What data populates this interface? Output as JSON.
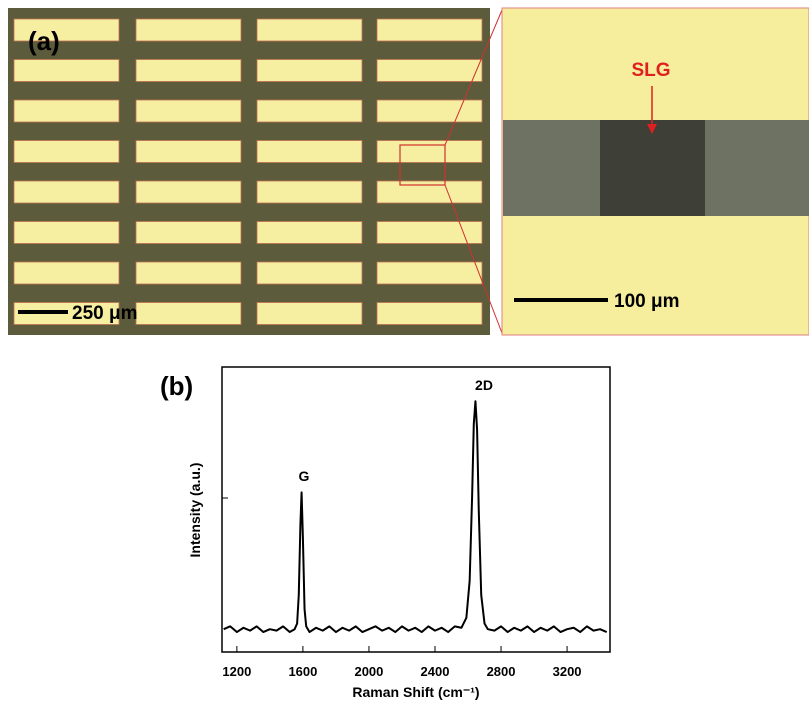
{
  "panel_a": {
    "label": "(a)",
    "scale_bar_left": "250 μm",
    "scale_bar_right": "100 μm",
    "annotation": "SLG"
  },
  "chart_data": {
    "type": "line",
    "panel_label": "(b)",
    "x_label": "Raman Shift (cm⁻¹)",
    "y_label": "Intensity (a.u.)",
    "annotations": [
      "G",
      "2D"
    ],
    "xlim": [
      1110,
      3460
    ],
    "ylim": [
      0,
      1
    ],
    "xticks": [
      1200,
      1600,
      2000,
      2400,
      2800,
      3200
    ],
    "color": "#000000",
    "x": [
      1120,
      1160,
      1200,
      1240,
      1280,
      1320,
      1360,
      1400,
      1440,
      1480,
      1520,
      1550,
      1565,
      1575,
      1585,
      1592,
      1600,
      1610,
      1620,
      1640,
      1680,
      1720,
      1760,
      1800,
      1840,
      1880,
      1920,
      1960,
      2000,
      2040,
      2080,
      2120,
      2160,
      2200,
      2240,
      2280,
      2320,
      2360,
      2400,
      2440,
      2480,
      2520,
      2560,
      2590,
      2610,
      2625,
      2635,
      2645,
      2655,
      2665,
      2680,
      2700,
      2720,
      2760,
      2800,
      2840,
      2880,
      2920,
      2960,
      3000,
      3040,
      3080,
      3120,
      3160,
      3200,
      3240,
      3280,
      3320,
      3360,
      3400,
      3440
    ],
    "values": [
      0.08,
      0.09,
      0.07,
      0.085,
      0.075,
      0.09,
      0.07,
      0.08,
      0.075,
      0.09,
      0.07,
      0.08,
      0.1,
      0.2,
      0.45,
      0.56,
      0.4,
      0.15,
      0.09,
      0.07,
      0.085,
      0.075,
      0.09,
      0.07,
      0.085,
      0.075,
      0.09,
      0.07,
      0.08,
      0.09,
      0.075,
      0.085,
      0.07,
      0.09,
      0.075,
      0.085,
      0.07,
      0.09,
      0.075,
      0.085,
      0.07,
      0.09,
      0.085,
      0.12,
      0.25,
      0.55,
      0.8,
      0.88,
      0.78,
      0.5,
      0.2,
      0.1,
      0.08,
      0.075,
      0.09,
      0.07,
      0.085,
      0.075,
      0.09,
      0.07,
      0.085,
      0.075,
      0.09,
      0.07,
      0.08,
      0.085,
      0.07,
      0.09,
      0.075,
      0.08,
      0.07
    ]
  }
}
